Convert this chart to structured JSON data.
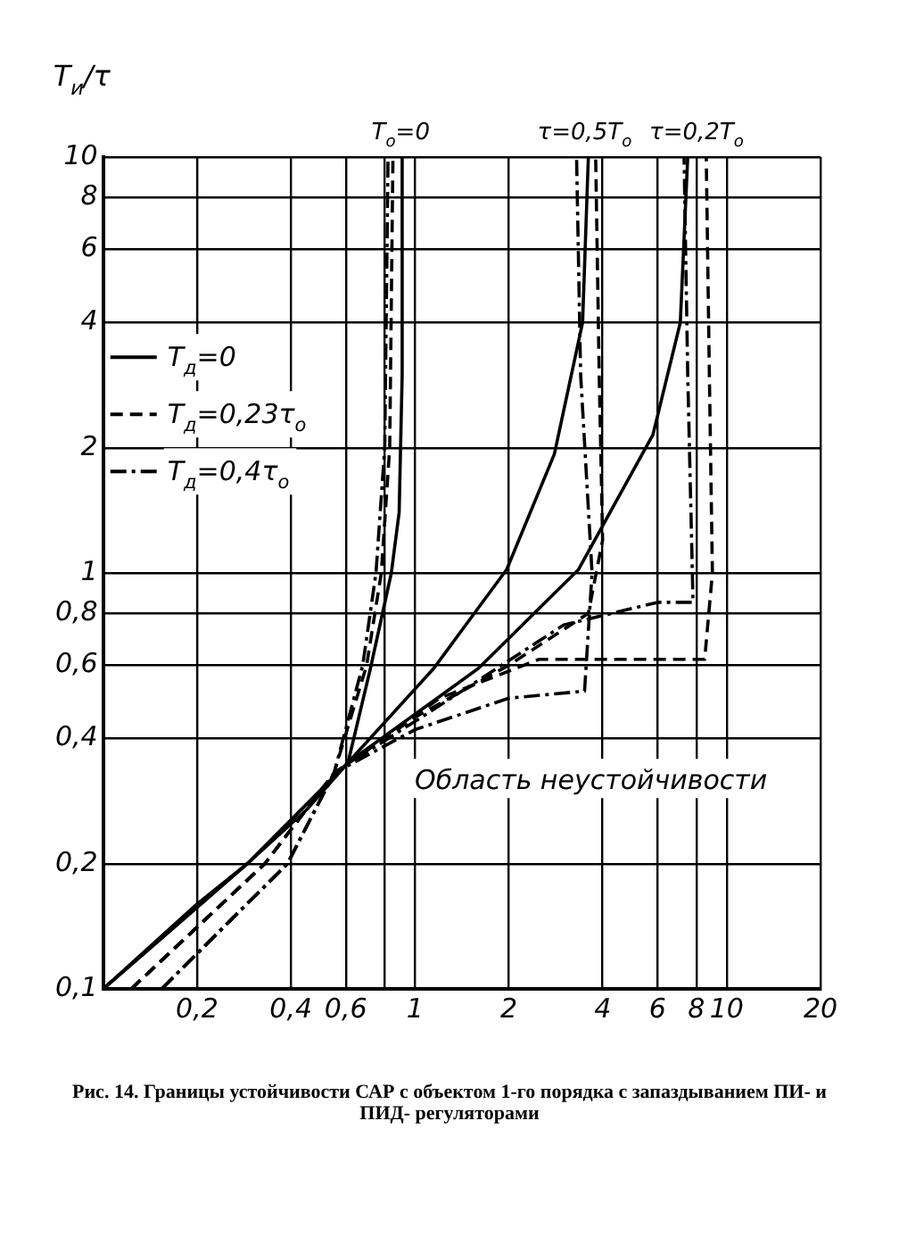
{
  "chart_data": {
    "type": "line",
    "title": "Рис. 14. Границы устойчивости САР с объектом 1-го порядка с запаздыванием ПИ- и ПИД- регуляторами",
    "ylabel": "T$_{и}$/τ",
    "log": "xy",
    "grid": true,
    "legend": "top left",
    "marker": "none",
    "xlim": [
      0.1,
      20
    ],
    "ylim": [
      0.1,
      10
    ],
    "xticks": [
      {
        "value": 0.1,
        "label": null
      },
      {
        "value": 0.2,
        "label": "0,2"
      },
      {
        "value": 0.4,
        "label": "0,4"
      },
      {
        "value": 0.6,
        "label": "0,6"
      },
      {
        "value": 0.8,
        "label": null
      },
      1,
      2,
      4,
      6,
      8,
      10,
      20
    ],
    "yticks": [
      {
        "value": 0.1,
        "label": "0,1"
      },
      {
        "value": 0.2,
        "label": "0,2"
      },
      {
        "value": 0.4,
        "label": "0,4"
      },
      {
        "value": 0.6,
        "label": "0,6"
      },
      {
        "value": 0.8,
        "label": "0,8"
      },
      1,
      2,
      4,
      6,
      8,
      10
    ],
    "annotations": [
      {
        "text": "T$_{о}$=0",
        "x": 0.9,
        "y": 10
      },
      {
        "text": "τ=0,5T$_{о}$",
        "x": 3.5,
        "y": 10
      },
      {
        "text": "τ=0,2T$_{о}$",
        "x": 8,
        "y": 10
      },
      "Область неустойчивости"
    ],
    "series": [
      {
        "name": "T$_{д}$=0",
        "color": "#000000",
        "line_style": "solid",
        "x": [
          0.1,
          0.2,
          0.29,
          0.45,
          0.61,
          0.72,
          0.84,
          0.89,
          0.91,
          0.91
        ],
        "values": [
          0.1,
          0.16,
          0.2,
          0.27,
          0.35,
          0.59,
          1.0,
          1.4,
          3,
          10
        ]
      },
      {
        "color": "#000000",
        "line_style": "solid",
        "x": [
          0.1,
          0.29,
          0.61,
          1.15,
          1.97,
          2.8,
          3.45,
          3.6
        ],
        "values": [
          0.1,
          0.2,
          0.35,
          0.59,
          1.02,
          1.93,
          4,
          10
        ]
      },
      {
        "color": "#000000",
        "line_style": "solid",
        "x": [
          0.1,
          0.29,
          0.61,
          1.6,
          3.35,
          5.8,
          7.1,
          7.5
        ],
        "values": [
          0.1,
          0.2,
          0.35,
          0.59,
          1.02,
          2.15,
          4,
          10
        ]
      },
      {
        "name": "T$_{д}$=0,23τ$_{о}$",
        "color": "#000000",
        "line_style": "dashed",
        "x": [
          0.123,
          0.33,
          0.55,
          0.7,
          0.78,
          0.83,
          0.85
        ],
        "values": [
          0.1,
          0.2,
          0.33,
          0.6,
          1,
          2,
          10
        ]
      },
      {
        "color": "#000000",
        "line_style": "dashed",
        "x": [
          0.123,
          0.33,
          0.55,
          1,
          2,
          3.6,
          4,
          3.9,
          3.8
        ],
        "values": [
          0.1,
          0.2,
          0.33,
          0.45,
          0.6,
          0.8,
          1.2,
          3,
          10
        ]
      },
      {
        "color": "#000000",
        "line_style": "dashed",
        "x": [
          0.123,
          0.33,
          0.55,
          1.2,
          2.5,
          5,
          8.5,
          9,
          8.8,
          8.6
        ],
        "values": [
          0.1,
          0.2,
          0.33,
          0.5,
          0.62,
          0.62,
          0.62,
          1,
          3,
          10
        ]
      },
      {
        "name": "T$_{д}$=0,4τ$_{о}$",
        "color": "#000000",
        "line_style": "dashdot",
        "x": [
          0.154,
          0.39,
          0.55,
          0.68,
          0.75,
          0.8,
          0.82
        ],
        "values": [
          0.1,
          0.2,
          0.33,
          0.6,
          1,
          2,
          10
        ]
      },
      {
        "color": "#000000",
        "line_style": "dashdot",
        "x": [
          0.154,
          0.39,
          0.55,
          1,
          2,
          3.5,
          3.7,
          3.4,
          3.3
        ],
        "values": [
          0.1,
          0.2,
          0.33,
          0.42,
          0.5,
          0.52,
          1,
          3,
          10
        ]
      },
      {
        "color": "#000000",
        "line_style": "dashdot",
        "x": [
          0.154,
          0.39,
          0.55,
          1.2,
          3,
          6,
          7.8,
          7.5,
          7.3
        ],
        "values": [
          0.1,
          0.2,
          0.33,
          0.48,
          0.75,
          0.85,
          0.85,
          3,
          10
        ]
      }
    ]
  }
}
